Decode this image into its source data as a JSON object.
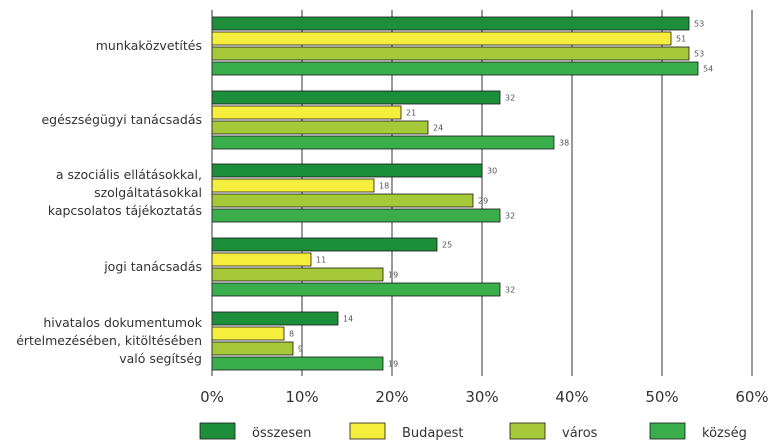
{
  "chart_data": {
    "type": "bar",
    "orientation": "horizontal",
    "categories": [
      [
        "munkaközvetítés"
      ],
      [
        "egészségügyi tanácsadás"
      ],
      [
        "a szociális ellátásokkal,",
        "szolgáltatásokkal",
        "kapcsolatos tájékoztatás"
      ],
      [
        "jogi tanácsadás"
      ],
      [
        "hivatalos dokumentumok",
        "értelmezésében, kitöltésében",
        "való segítség"
      ]
    ],
    "series": [
      {
        "name": "összesen",
        "color": "#1d8f3a",
        "values": [
          53,
          32,
          30,
          25,
          14
        ]
      },
      {
        "name": "Budapest",
        "color": "#f5ee3c",
        "values": [
          51,
          21,
          18,
          11,
          8
        ]
      },
      {
        "name": "város",
        "color": "#a6c93a",
        "values": [
          53,
          24,
          29,
          19,
          9
        ]
      },
      {
        "name": "község",
        "color": "#3aae4a",
        "values": [
          54,
          38,
          32,
          32,
          19
        ]
      }
    ],
    "xlim": [
      0,
      60
    ],
    "xticks": [
      "0%",
      "10%",
      "20%",
      "30%",
      "40%",
      "50%",
      "60%"
    ],
    "grid": true,
    "legend_position": "bottom"
  }
}
